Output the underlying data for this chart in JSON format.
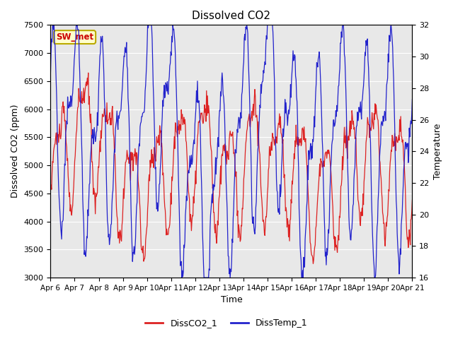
{
  "title": "Dissolved CO2",
  "xlabel": "Time",
  "ylabel_left": "Dissolved CO2 (ppm)",
  "ylabel_right": "Temperature",
  "ylim_left": [
    3000,
    7500
  ],
  "ylim_right": [
    16,
    32
  ],
  "yticks_left": [
    3000,
    3500,
    4000,
    4500,
    5000,
    5500,
    6000,
    6500,
    7000,
    7500
  ],
  "yticks_right": [
    16,
    18,
    20,
    22,
    24,
    26,
    28,
    30,
    32
  ],
  "xtick_labels": [
    "Apr 6",
    "Apr 7",
    "Apr 8",
    "Apr 9",
    "Apr 10",
    "Apr 11",
    "Apr 12",
    "Apr 13",
    "Apr 14",
    "Apr 15",
    "Apr 16",
    "Apr 17",
    "Apr 18",
    "Apr 19",
    "Apr 20",
    "Apr 21"
  ],
  "annotation_text": "SW_met",
  "annotation_bg": "#ffffcc",
  "annotation_border": "#bbaa00",
  "annotation_text_color": "#cc0000",
  "line_co2_color": "#dd2222",
  "line_temp_color": "#2222cc",
  "plot_bg_color": "#e8e8e8",
  "legend_co2": "DissCO2_1",
  "legend_temp": "DissTemp_1",
  "grid_color": "#ffffff",
  "title_fontsize": 11,
  "label_fontsize": 9,
  "tick_fontsize": 8
}
